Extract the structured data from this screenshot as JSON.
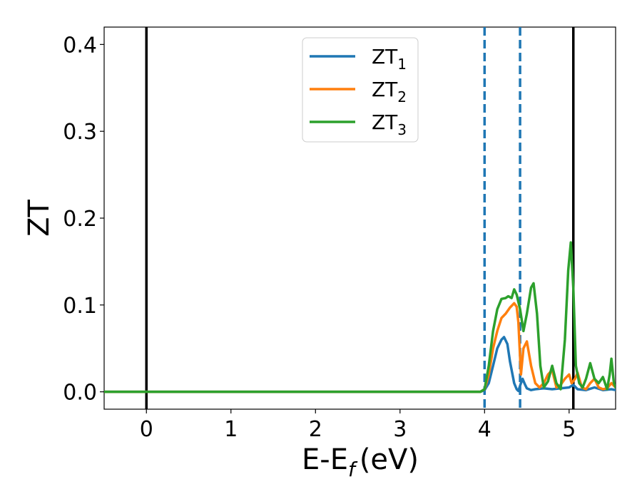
{
  "chart_data": {
    "type": "line",
    "xlabel": "E-E",
    "xlabel_sub": "f",
    "xlabel_unit": "(eV)",
    "ylabel": "ZT",
    "xlim": [
      -0.5,
      5.55
    ],
    "ylim": [
      -0.02,
      0.42
    ],
    "xticks": [
      0,
      1,
      2,
      3,
      4,
      5
    ],
    "xtick_labels": [
      "0",
      "1",
      "2",
      "3",
      "4",
      "5"
    ],
    "yticks": [
      0.0,
      0.1,
      0.2,
      0.3,
      0.4
    ],
    "ytick_labels": [
      "0.0",
      "0.1",
      "0.2",
      "0.3",
      "0.4"
    ],
    "grid": false,
    "legend_placement": "upper-center",
    "vlines": [
      {
        "x": 0.0,
        "style": "solid",
        "color": "#000000"
      },
      {
        "x": 4.0,
        "style": "dashed",
        "color": "#1f77b4"
      },
      {
        "x": 4.42,
        "style": "dashed",
        "color": "#1f77b4"
      },
      {
        "x": 5.05,
        "style": "solid",
        "color": "#000000"
      }
    ],
    "series": [
      {
        "name": "ZT",
        "sub": "1",
        "color": "#1f77b4",
        "x": [
          -0.5,
          3.95,
          4.0,
          4.05,
          4.1,
          4.15,
          4.2,
          4.23,
          4.27,
          4.3,
          4.35,
          4.38,
          4.4,
          4.43,
          4.45,
          4.48,
          4.5,
          4.55,
          4.6,
          4.7,
          4.8,
          4.9,
          5.0,
          5.05,
          5.1,
          5.2,
          5.3,
          5.4,
          5.5,
          5.55
        ],
        "y": [
          0.0,
          0.0,
          0.002,
          0.01,
          0.03,
          0.05,
          0.06,
          0.063,
          0.055,
          0.035,
          0.01,
          0.003,
          0.001,
          0.01,
          0.015,
          0.008,
          0.004,
          0.002,
          0.003,
          0.004,
          0.003,
          0.004,
          0.005,
          0.008,
          0.003,
          0.002,
          0.005,
          0.002,
          0.003,
          0.002
        ]
      },
      {
        "name": "ZT",
        "sub": "2",
        "color": "#ff7f0e",
        "x": [
          -0.5,
          3.95,
          4.0,
          4.05,
          4.1,
          4.15,
          4.2,
          4.25,
          4.3,
          4.35,
          4.38,
          4.4,
          4.43,
          4.46,
          4.5,
          4.55,
          4.6,
          4.65,
          4.7,
          4.75,
          4.8,
          4.85,
          4.9,
          4.95,
          5.0,
          5.03,
          5.07,
          5.1,
          5.15,
          5.2,
          5.25,
          5.3,
          5.35,
          5.4,
          5.45,
          5.5,
          5.55
        ],
        "y": [
          0.0,
          0.0,
          0.003,
          0.02,
          0.05,
          0.07,
          0.085,
          0.09,
          0.097,
          0.102,
          0.098,
          0.08,
          0.02,
          0.05,
          0.058,
          0.03,
          0.01,
          0.005,
          0.01,
          0.02,
          0.025,
          0.005,
          0.008,
          0.015,
          0.02,
          0.01,
          0.015,
          0.022,
          0.005,
          0.003,
          0.01,
          0.015,
          0.005,
          0.003,
          0.004,
          0.01,
          0.005
        ]
      },
      {
        "name": "ZT",
        "sub": "3",
        "color": "#2ca02c",
        "x": [
          -0.5,
          3.95,
          4.0,
          4.05,
          4.1,
          4.15,
          4.2,
          4.25,
          4.28,
          4.32,
          4.35,
          4.38,
          4.42,
          4.46,
          4.5,
          4.55,
          4.58,
          4.62,
          4.66,
          4.7,
          4.75,
          4.8,
          4.85,
          4.9,
          4.95,
          4.99,
          5.02,
          5.05,
          5.08,
          5.12,
          5.16,
          5.2,
          5.25,
          5.3,
          5.35,
          5.4,
          5.45,
          5.48,
          5.5,
          5.53,
          5.55
        ],
        "y": [
          0.0,
          0.0,
          0.003,
          0.03,
          0.07,
          0.095,
          0.107,
          0.108,
          0.11,
          0.108,
          0.118,
          0.112,
          0.095,
          0.07,
          0.09,
          0.12,
          0.125,
          0.09,
          0.03,
          0.005,
          0.012,
          0.03,
          0.01,
          0.003,
          0.06,
          0.14,
          0.172,
          0.12,
          0.03,
          0.01,
          0.005,
          0.015,
          0.033,
          0.015,
          0.01,
          0.017,
          0.003,
          0.02,
          0.038,
          0.01,
          0.005
        ]
      }
    ]
  }
}
